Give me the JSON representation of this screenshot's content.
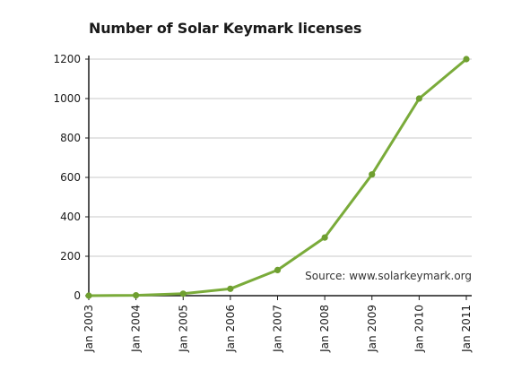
{
  "chart_data": {
    "type": "line",
    "title": "Number of Solar Keymark licenses",
    "xlabel": "",
    "ylabel": "",
    "categories": [
      "Jan 2003",
      "Jan 2004",
      "Jan 2005",
      "Jan 2006",
      "Jan 2007",
      "Jan 2008",
      "Jan 2009",
      "Jan 2010",
      "Jan 2011"
    ],
    "series": [
      {
        "values": [
          0,
          2,
          10,
          35,
          130,
          295,
          615,
          1000,
          1200
        ]
      }
    ],
    "ylim": [
      0,
      1200
    ],
    "yticks": [
      0,
      200,
      400,
      600,
      800,
      1000,
      1200
    ],
    "grid": "horizontal",
    "annotation": "Source: www.solarkeymark.org",
    "colors": {
      "line": "#7aab3a",
      "marker": "#6f9f30",
      "grid": "#c8c8c8",
      "axis": "#1a1a1a"
    }
  }
}
